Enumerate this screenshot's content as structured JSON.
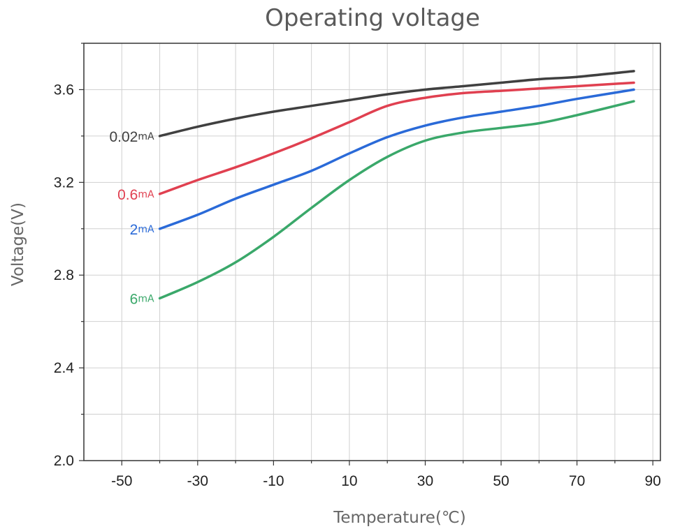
{
  "chart_data": {
    "type": "line",
    "title": "Operating voltage",
    "xlabel": "Temperature(℃)",
    "ylabel": "Voltage(V)",
    "xlim": [
      -60,
      92
    ],
    "ylim": [
      2.0,
      3.8
    ],
    "x_ticks": [
      -50,
      -30,
      -10,
      10,
      30,
      50,
      70,
      90
    ],
    "x_tick_labels": [
      "-50",
      "-30",
      "-10",
      "10",
      "30",
      "50",
      "70",
      "90"
    ],
    "y_ticks": [
      2.0,
      2.4,
      2.8,
      3.2,
      3.6
    ],
    "y_tick_labels": [
      "2.0",
      "2.4",
      "2.8",
      "3.2",
      "3.6"
    ],
    "grid": true,
    "legend": "inline labels at left end of each line",
    "series": [
      {
        "name": "0.02mA",
        "value": "0.02",
        "unit": "mA",
        "color": "#404040",
        "x": [
          -40,
          -30,
          -20,
          -10,
          0,
          10,
          20,
          30,
          40,
          50,
          60,
          70,
          85
        ],
        "y": [
          3.4,
          3.44,
          3.475,
          3.505,
          3.53,
          3.555,
          3.58,
          3.6,
          3.615,
          3.63,
          3.645,
          3.655,
          3.68
        ]
      },
      {
        "name": "0.6mA",
        "value": "0.6",
        "unit": "mA",
        "color": "#e04050",
        "x": [
          -40,
          -30,
          -20,
          -10,
          0,
          10,
          20,
          30,
          40,
          50,
          60,
          70,
          85
        ],
        "y": [
          3.15,
          3.21,
          3.265,
          3.325,
          3.39,
          3.46,
          3.53,
          3.565,
          3.585,
          3.595,
          3.605,
          3.615,
          3.63
        ]
      },
      {
        "name": "2mA",
        "value": "2",
        "unit": "mA",
        "color": "#2a6ad8",
        "x": [
          -40,
          -30,
          -20,
          -10,
          0,
          10,
          20,
          30,
          40,
          50,
          60,
          70,
          85
        ],
        "y": [
          3.0,
          3.06,
          3.13,
          3.19,
          3.25,
          3.325,
          3.395,
          3.445,
          3.48,
          3.505,
          3.53,
          3.56,
          3.6
        ]
      },
      {
        "name": "6mA",
        "value": "6",
        "unit": "mA",
        "color": "#3aa86a",
        "x": [
          -40,
          -30,
          -20,
          -10,
          0,
          10,
          20,
          30,
          40,
          50,
          60,
          70,
          85
        ],
        "y": [
          2.7,
          2.77,
          2.855,
          2.965,
          3.09,
          3.21,
          3.31,
          3.38,
          3.415,
          3.435,
          3.455,
          3.49,
          3.55
        ]
      }
    ]
  }
}
